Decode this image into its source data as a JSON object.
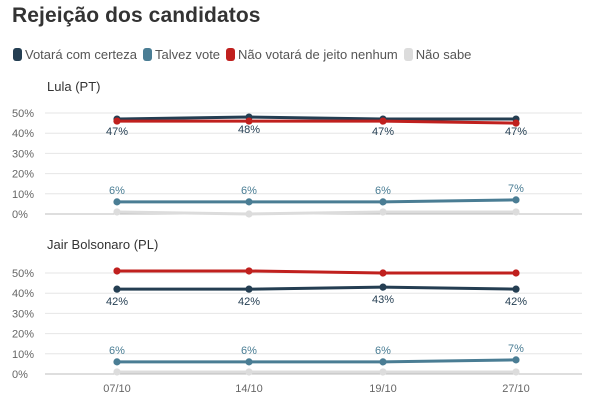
{
  "title": "Rejeição dos candidatos",
  "legend": [
    {
      "label": "Votará com certeza",
      "color": "#243e52"
    },
    {
      "label": "Talvez vote",
      "color": "#4a7d94"
    },
    {
      "label": "Não votará de jeito nenhum",
      "color": "#c0201e"
    },
    {
      "label": "Não sabe",
      "color": "#dcdcdc"
    }
  ],
  "chart_data": [
    {
      "type": "line",
      "title": "Lula (PT)",
      "x": [
        "07/10",
        "14/10",
        "19/10",
        "27/10"
      ],
      "y_ticks": [
        "50%",
        "40%",
        "30%",
        "20%",
        "10%",
        "0%"
      ],
      "ylim": [
        0,
        50
      ],
      "grid": true,
      "series": [
        {
          "name": "Votará com certeza",
          "color": "#243e52",
          "values": [
            47,
            48,
            47,
            47
          ],
          "labels": [
            "47%",
            "48%",
            "47%",
            "47%"
          ]
        },
        {
          "name": "Talvez vote",
          "color": "#4a7d94",
          "values": [
            6,
            6,
            6,
            7
          ],
          "labels": [
            "6%",
            "6%",
            "6%",
            "7%"
          ]
        },
        {
          "name": "Não votará de jeito nenhum",
          "color": "#c0201e",
          "values": [
            46,
            46,
            46,
            45
          ]
        },
        {
          "name": "Não sabe",
          "color": "#dcdcdc",
          "values": [
            1,
            0,
            1,
            1
          ]
        }
      ]
    },
    {
      "type": "line",
      "title": "Jair Bolsonaro (PL)",
      "x": [
        "07/10",
        "14/10",
        "19/10",
        "27/10"
      ],
      "y_ticks": [
        "50%",
        "40%",
        "30%",
        "20%",
        "10%",
        "0%"
      ],
      "ylim": [
        0,
        50
      ],
      "grid": true,
      "series": [
        {
          "name": "Não votará de jeito nenhum",
          "color": "#c0201e",
          "values": [
            51,
            51,
            50,
            50
          ]
        },
        {
          "name": "Votará com certeza",
          "color": "#243e52",
          "values": [
            42,
            42,
            43,
            42
          ],
          "labels": [
            "42%",
            "42%",
            "43%",
            "42%"
          ]
        },
        {
          "name": "Talvez vote",
          "color": "#4a7d94",
          "values": [
            6,
            6,
            6,
            7
          ],
          "labels": [
            "6%",
            "6%",
            "6%",
            "7%"
          ]
        },
        {
          "name": "Não sabe",
          "color": "#dcdcdc",
          "values": [
            1,
            1,
            1,
            1
          ]
        }
      ]
    }
  ]
}
